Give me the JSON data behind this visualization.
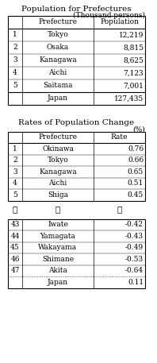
{
  "title1": "Population for Prefectures",
  "subtitle1": "(Thousand persons)",
  "table1_headers": [
    "",
    "Prefecture",
    "Population"
  ],
  "table1_rows": [
    [
      "1",
      "Tokyo",
      "12,219"
    ],
    [
      "2",
      "Osaka",
      "8,815"
    ],
    [
      "3",
      "Kanagawa",
      "8,625"
    ],
    [
      "4",
      "Aichi",
      "7,123"
    ],
    [
      "5",
      "Saitama",
      "7,001"
    ]
  ],
  "table1_footer": [
    "",
    "Japan",
    "127,435"
  ],
  "title2": "Rates of Population Change",
  "subtitle2": "(%)",
  "table2_headers": [
    "",
    "Prefecture",
    "Rate"
  ],
  "table2_rows_top": [
    [
      "1",
      "Okinawa",
      "0.76"
    ],
    [
      "2",
      "Tokyo",
      "0.66"
    ],
    [
      "3",
      "Kanagawa",
      "0.65"
    ],
    [
      "4",
      "Aichi",
      "0.51"
    ],
    [
      "5",
      "Shiga",
      "0.45"
    ]
  ],
  "table2_dots": [
    "⋮",
    "⋮",
    "⋮"
  ],
  "table2_rows_bottom": [
    [
      "43",
      "Iwate",
      "-0.42"
    ],
    [
      "44",
      "Yamagata",
      "-0.43"
    ],
    [
      "45",
      "Wakayama",
      "-0.49"
    ],
    [
      "46",
      "Shimane",
      "-0.53"
    ],
    [
      "47",
      "Akita",
      "-0.64"
    ]
  ],
  "table2_footer": [
    "",
    "Japan",
    "0.11"
  ],
  "bg_color": "#ffffff",
  "text_color": "#000000",
  "font_size": 6.5,
  "title_font_size": 7.5,
  "fig_width": 1.98,
  "fig_height": 4.57,
  "dpi": 100
}
